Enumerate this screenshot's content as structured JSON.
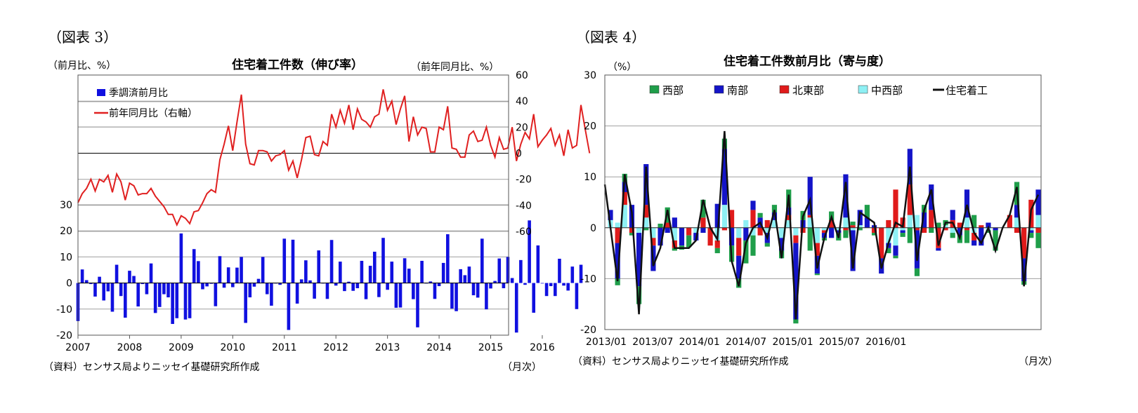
{
  "colors": {
    "mom_bar": "#1010e0",
    "yoy_line": "#e02020",
    "west": "#1f9e4a",
    "south": "#1414c8",
    "northeast": "#e01b1b",
    "midwest": "#8ef0f4",
    "total": "#111111",
    "grid": "#a0a0a0"
  },
  "figure3": {
    "fig_label": "（図表 3）",
    "left_unit": "（前月比、%）",
    "right_unit": "（前年同月比、%）",
    "source": "（資料）センサス局よりニッセイ基礎研究所作成",
    "x_unit": "（月次）"
  },
  "figure4": {
    "fig_label": "（図表 4）",
    "y_unit": "（%）",
    "source": "（資料）センサス局よりニッセイ基礎研究所作成",
    "x_unit": "（月次）"
  },
  "chart_data": [
    {
      "type": "bar+line",
      "title": "住宅着工件数（伸び率）",
      "x_start": "2007/01",
      "x_ticks": [
        "2007",
        "2008",
        "2009",
        "2010",
        "2011",
        "2012",
        "2013",
        "2014",
        "2015",
        "2016"
      ],
      "left_axis": {
        "ticks": [
          -20,
          -10,
          0,
          10,
          20,
          30
        ]
      },
      "right_axis": {
        "ticks": [
          -60,
          -40,
          -20,
          0,
          20,
          40,
          60
        ]
      },
      "legend_position": "top-left",
      "series": [
        {
          "name": "季調済前月比",
          "type": "bar",
          "axis": "left",
          "values": [
            -14.6,
            5.2,
            1.1,
            -0.4,
            -5.2,
            2.4,
            -6.7,
            -3.2,
            -11.0,
            7.0,
            -5.0,
            -13.3,
            4.7,
            2.7,
            -9.0,
            -0.4,
            -4.3,
            7.5,
            -11.5,
            -9.2,
            -4.3,
            -5.5,
            -15.7,
            -13.5,
            19.0,
            -14.0,
            -13.5,
            13.0,
            8.4,
            -2.4,
            -1.3,
            -0.3,
            -8.9,
            10.3,
            -1.8,
            6.0,
            -1.6,
            5.9,
            10.0,
            -15.3,
            -5.5,
            -1.4,
            1.6,
            10.0,
            -4.3,
            -8.7,
            -0.2,
            -0.7,
            17.0,
            -18.0,
            16.6,
            -7.9,
            1.4,
            8.7,
            1.0,
            -6.0,
            12.5,
            -0.2,
            -6.1,
            16.5,
            -1.0,
            8.2,
            -3.1,
            0.5,
            -3.0,
            -2.0,
            8.5,
            -6.2,
            6.6,
            12.0,
            -5.4,
            17.3,
            -2.6,
            8.2,
            -9.5,
            -9.4,
            9.5,
            5.5,
            -6.2,
            -17.0,
            8.5,
            -0.2,
            0.6,
            -6.1,
            -1.2,
            7.7,
            18.7,
            -9.8,
            -10.8,
            5.3,
            3.0,
            6.3,
            -4.7,
            -5.6,
            17.0,
            -10.1,
            -2.1,
            0.8,
            9.4,
            -2.0,
            10.0,
            1.9,
            -19.0,
            8.8,
            -0.7,
            24.0,
            -11.4,
            14.4,
            -0.2,
            -5.0,
            -1.2,
            -5.0,
            9.3,
            -1.0,
            -2.9,
            6.3,
            -10.0,
            7.0
          ]
        },
        {
          "name": "前年同月比（右軸）",
          "type": "line",
          "axis": "right",
          "values": [
            -38.0,
            -31.0,
            -27.0,
            -20.0,
            -29.0,
            -20.0,
            -22.0,
            -17.0,
            -30.0,
            -16.0,
            -22.0,
            -36.0,
            -23.0,
            -25.0,
            -32.0,
            -31.0,
            -31.0,
            -27.0,
            -33.0,
            -37.0,
            -41.0,
            -47.0,
            -47.0,
            -55.0,
            -48.0,
            -50.0,
            -54.0,
            -45.0,
            -44.0,
            -38.0,
            -31.0,
            -28.0,
            -30.0,
            -5.0,
            7.0,
            21.0,
            2.0,
            24.0,
            45.0,
            7.0,
            -8.0,
            -9.0,
            2.0,
            2.0,
            1.0,
            -6.0,
            -2.0,
            -1.0,
            2.0,
            -13.0,
            -6.0,
            -19.0,
            -5.0,
            12.0,
            13.0,
            -1.0,
            -2.0,
            9.0,
            6.0,
            30.0,
            20.0,
            33.0,
            23.0,
            37.0,
            18.0,
            34.0,
            26.0,
            24.0,
            20.0,
            28.0,
            30.0,
            49.0,
            33.0,
            40.0,
            22.0,
            34.0,
            44.0,
            9.0,
            28.0,
            14.0,
            20.0,
            19.0,
            1.0,
            1.0,
            20.0,
            18.0,
            36.0,
            4.0,
            3.0,
            -3.0,
            -3.0,
            14.0,
            17.0,
            9.0,
            10.0,
            20.0,
            6.0,
            -3.0,
            12.0,
            3.0,
            4.0,
            20.0,
            -6.0,
            7.0,
            16.0,
            11.0,
            30.0,
            5.0,
            10.0,
            14.0,
            19.0,
            6.0,
            14.0,
            -2.0,
            18.0,
            4.0,
            6.0,
            37.0,
            18.0,
            0.0
          ]
        }
      ]
    },
    {
      "type": "stacked-bar+line",
      "title": "住宅着工件数前月比（寄与度）",
      "x_start": "2013/01",
      "x_ticks": [
        "2013/01",
        "2013/07",
        "2014/01",
        "2014/07",
        "2015/01",
        "2015/07",
        "2016/01"
      ],
      "y_axis": {
        "ticks": [
          -20,
          -10,
          0,
          10,
          20,
          30
        ],
        "ylim": [
          -20,
          30
        ]
      },
      "legend_position": "top",
      "series": [
        {
          "name": "西部",
          "type": "bar",
          "values": [
            0.0,
            -1.3,
            1.6,
            -0.5,
            -3.5,
            -0.5,
            0.0,
            0.8,
            3.0,
            -0.5,
            -0.8,
            -2.3,
            0.0,
            3.5,
            0.0,
            -1.0,
            2.0,
            -3.2,
            -1.8,
            -4.5,
            -4.0,
            0.9,
            -0.7,
            1.5,
            -1.5,
            3.5,
            -0.8,
            1.8,
            -4.5,
            -0.3,
            -0.5,
            1.7,
            -1.5,
            -1.5,
            0.7,
            -0.5,
            2.5,
            -0.5,
            0.0,
            -1.0,
            -0.5,
            -0.8,
            -3.0,
            -1.5,
            1.5,
            -1.0,
            1.0,
            1.0,
            -1.0,
            -1.5,
            -2.5,
            2.5,
            0.0,
            -0.5,
            -4.0,
            0.0,
            0.0,
            4.5,
            -0.7,
            -1.0,
            -3.0
          ]
        },
        {
          "name": "南部",
          "type": "bar",
          "values": [
            2.0,
            -7.0,
            2.0,
            4.5,
            -10.5,
            8.0,
            -5.0,
            -3.5,
            -1.0,
            2.0,
            -3.5,
            0.0,
            -1.5,
            -1.0,
            0.0,
            4.7,
            11.0,
            -3.5,
            -4.5,
            -2.5,
            1.8,
            2.0,
            -2.0,
            1.5,
            -2.5,
            1.5,
            -15.0,
            1.5,
            7.5,
            -3.5,
            -1.0,
            -2.0,
            -0.5,
            8.5,
            -8.0,
            3.0,
            2.0,
            0.5,
            -3.0,
            -1.0,
            -2.0,
            -0.5,
            7.0,
            -7.5,
            3.0,
            5.0,
            -0.5,
            0.0,
            2.0,
            -1.5,
            5.5,
            -1.0,
            -3.5,
            1.0,
            -0.5,
            0.0,
            0.0,
            2.5,
            -4.5,
            -0.5,
            5.0
          ]
        },
        {
          "name": "北東部",
          "type": "bar",
          "values": [
            0.0,
            -3.0,
            2.5,
            -1.0,
            0.0,
            2.5,
            -1.5,
            0.0,
            1.0,
            -1.5,
            0.0,
            -1.5,
            0.0,
            2.0,
            -3.5,
            -1.5,
            -0.5,
            3.5,
            -3.5,
            0.0,
            3.5,
            -1.5,
            1.5,
            0.0,
            0.0,
            1.0,
            -1.5,
            -1.0,
            0.5,
            -2.5,
            -0.5,
            1.5,
            0.0,
            -0.5,
            0.5,
            0.0,
            0.0,
            -1.0,
            -6.0,
            1.5,
            7.5,
            2.0,
            6.0,
            -0.5,
            -1.0,
            3.5,
            -4.0,
            -0.5,
            1.5,
            1.0,
            -0.5,
            -1.5,
            0.5,
            0.0,
            0.0,
            0.0,
            2.5,
            -1.0,
            -6.0,
            5.5,
            -1.0
          ]
        },
        {
          "name": "中西部",
          "type": "bar",
          "values": [
            1.5,
            1.0,
            4.5,
            0.0,
            -1.0,
            2.0,
            -2.0,
            0.0,
            0.0,
            -2.5,
            0.0,
            0.0,
            -1.0,
            0.0,
            0.0,
            -2.5,
            4.5,
            0.0,
            -2.0,
            1.5,
            -1.5,
            0.0,
            -1.0,
            1.5,
            -2.0,
            1.5,
            -1.5,
            0.0,
            2.0,
            -3.0,
            -0.5,
            0.0,
            -0.5,
            2.0,
            -0.5,
            0.5,
            0.0,
            0.0,
            0.0,
            -3.0,
            -3.5,
            -0.5,
            2.5,
            2.5,
            0.0,
            0.0,
            0.0,
            0.5,
            -1.0,
            0.0,
            2.0,
            -1.0,
            0.0,
            -0.5,
            0.0,
            0.0,
            0.0,
            2.0,
            0.0,
            -0.5,
            2.5
          ]
        },
        {
          "name": "住宅着工",
          "type": "line",
          "values": [
            8.5,
            -10.5,
            10.5,
            3.0,
            -17.0,
            12.0,
            -7.5,
            -4.0,
            3.5,
            -4.0,
            -4.0,
            -4.0,
            -2.5,
            5.5,
            0.0,
            -2.3,
            19.0,
            -6.5,
            -11.5,
            -3.0,
            0.0,
            1.0,
            -2.0,
            3.5,
            -6.0,
            6.5,
            -18.0,
            2.2,
            5.5,
            -8.0,
            -2.0,
            2.1,
            -2.0,
            9.0,
            -8.0,
            3.0,
            2.0,
            1.0,
            -8.0,
            -3.0,
            1.0,
            0.2,
            12.0,
            -6.5,
            3.5,
            7.5,
            -3.5,
            1.0,
            1.0,
            -2.0,
            4.5,
            -1.0,
            -3.0,
            0.0,
            -4.5,
            0.0,
            2.5,
            8.0,
            -11.5,
            3.5,
            6.5
          ]
        }
      ]
    }
  ]
}
